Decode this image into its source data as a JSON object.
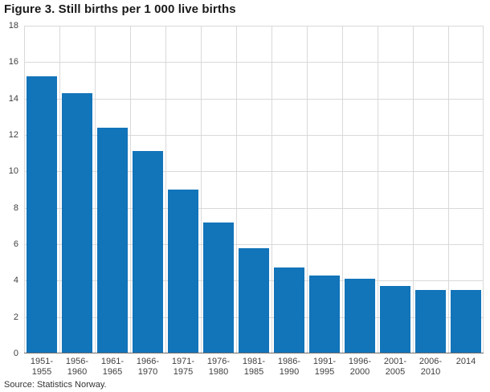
{
  "title": "Figure 3. Still births per 1 000 live births",
  "source": "Source: Statistics Norway.",
  "chart_data": {
    "type": "bar",
    "title": "Figure 3. Still births per 1 000 live births",
    "categories": [
      "1951-1955",
      "1956-1960",
      "1961-1965",
      "1966-1970",
      "1971-1975",
      "1976-1980",
      "1981-1985",
      "1986-1990",
      "1991-1995",
      "1996-2000",
      "2001-2005",
      "2006-2010",
      "2014"
    ],
    "values": [
      15.2,
      14.3,
      12.4,
      11.1,
      9.0,
      7.2,
      5.8,
      4.7,
      4.3,
      4.1,
      3.7,
      3.5,
      3.5
    ],
    "xlabel": "",
    "ylabel": "",
    "ylim": [
      0,
      18
    ],
    "ytick_step": 2,
    "grid": true,
    "legend": "none",
    "bar_color": "#1274b9",
    "grid_color": "#d9d9d9",
    "axis_color": "#6b6b6b"
  }
}
